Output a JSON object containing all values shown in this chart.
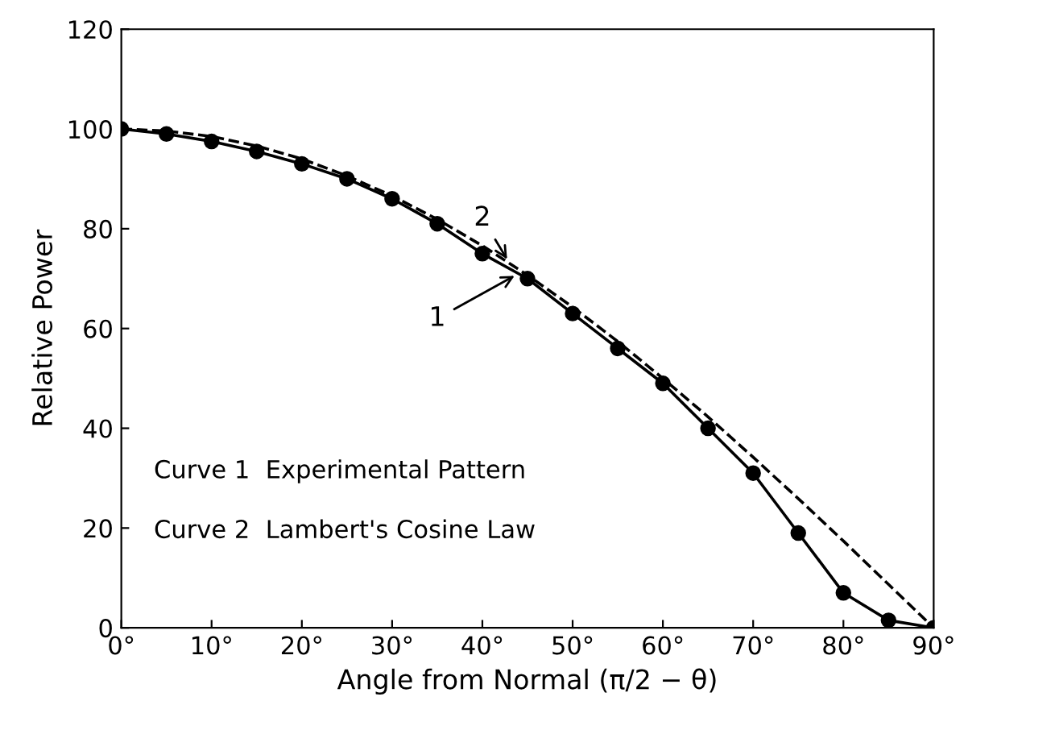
{
  "chart_data": {
    "type": "line",
    "xlabel": "Angle from Normal (π/2 − θ)",
    "ylabel": "Relative Power",
    "xlim": [
      0,
      90
    ],
    "ylim": [
      0,
      120
    ],
    "xticks": [
      {
        "value": 0,
        "label": "0°"
      },
      {
        "value": 10,
        "label": "10°"
      },
      {
        "value": 20,
        "label": "20°"
      },
      {
        "value": 30,
        "label": "30°"
      },
      {
        "value": 40,
        "label": "40°"
      },
      {
        "value": 50,
        "label": "50°"
      },
      {
        "value": 60,
        "label": "60°"
      },
      {
        "value": 70,
        "label": "70°"
      },
      {
        "value": 80,
        "label": "80°"
      },
      {
        "value": 90,
        "label": "90°"
      }
    ],
    "yticks": [
      0,
      20,
      40,
      60,
      80,
      100,
      120
    ],
    "grid": false,
    "legend": false,
    "series": [
      {
        "color": "#000000",
        "marker": "circle",
        "line_style": "solid",
        "x": [
          0,
          5,
          10,
          15,
          20,
          25,
          30,
          35,
          40,
          45,
          50,
          55,
          60,
          65,
          70,
          75,
          80,
          85,
          90
        ],
        "values": [
          100,
          99,
          97.5,
          95.5,
          93,
          90,
          86,
          81,
          75,
          70,
          63,
          56,
          49,
          40,
          31,
          19,
          7,
          1.5,
          0
        ]
      },
      {
        "color": "#000000",
        "marker": "none",
        "line_style": "dashed",
        "x": [
          0,
          5,
          10,
          15,
          20,
          25,
          30,
          35,
          40,
          45,
          50,
          55,
          60,
          65,
          70,
          75,
          80,
          85,
          90
        ],
        "values": [
          100,
          99.6,
          98.5,
          96.6,
          94,
          90.6,
          86.6,
          81.9,
          76.6,
          70.7,
          64.3,
          57.4,
          50,
          42.3,
          34.2,
          25.9,
          17.4,
          8.7,
          0
        ]
      }
    ],
    "annotations": [
      {
        "text": "1",
        "x": 44,
        "y": 71
      },
      {
        "text": "2",
        "x": 43,
        "y": 73.1
      },
      "Curve 1  Experimental Pattern",
      "Curve 2  Lambert's Cosine Law"
    ]
  }
}
